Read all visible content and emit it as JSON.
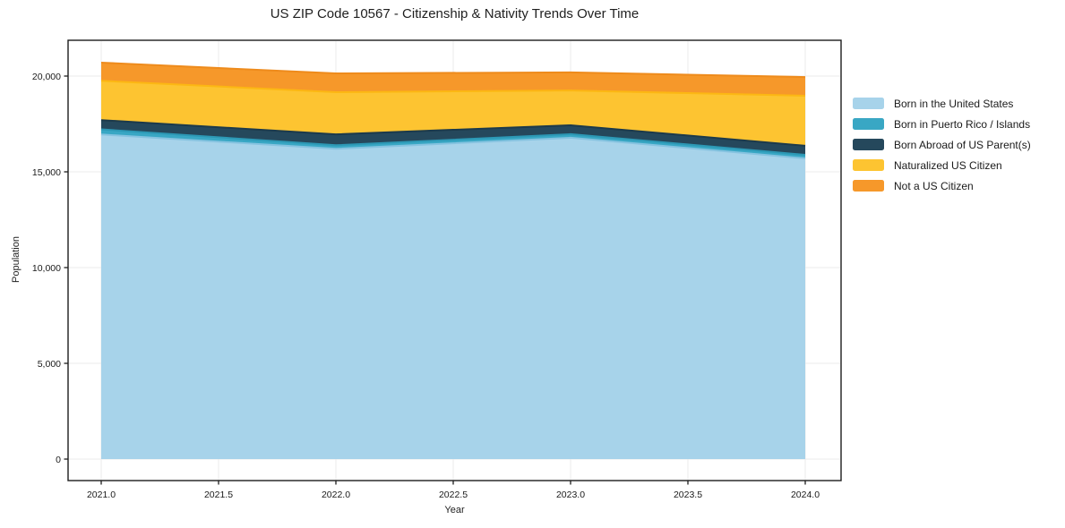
{
  "title": "US ZIP Code 10567 - Citizenship & Nativity Trends Over Time",
  "chart_data": {
    "type": "area",
    "stacked": true,
    "title": "US ZIP Code 10567 - Citizenship & Nativity Trends Over Time",
    "xlabel": "Year",
    "ylabel": "Population",
    "x": [
      2021,
      2022,
      2023,
      2024
    ],
    "series": [
      {
        "name": "Born in the United States",
        "color": "#a7d3ea",
        "edge": "#86c3e0",
        "values": [
          16950,
          16200,
          16780,
          15700
        ]
      },
      {
        "name": "Born in Puerto Rico / Islands",
        "color": "#39a7c4",
        "edge": "#2c98b5",
        "values": [
          270,
          190,
          185,
          190
        ]
      },
      {
        "name": "Born Abroad of US Parent(s)",
        "color": "#25485c",
        "edge": "#1c3a4b",
        "values": [
          480,
          570,
          465,
          470
        ]
      },
      {
        "name": "Naturalized US Citizen",
        "color": "#fdc431",
        "edge": "#fcb713",
        "values": [
          2050,
          2200,
          1820,
          2610
        ]
      },
      {
        "name": "Not a US Citizen",
        "color": "#f6982a",
        "edge": "#ee8b1c",
        "values": [
          950,
          980,
          940,
          980
        ]
      }
    ],
    "totals": [
      20700,
      20140,
      20190,
      19950
    ],
    "x_ticks": [
      2021.0,
      2021.5,
      2022.0,
      2022.5,
      2023.0,
      2023.5,
      2024.0
    ],
    "x_tick_labels": [
      "2021.0",
      "2021.5",
      "2022.0",
      "2022.5",
      "2023.0",
      "2023.5",
      "2024.0"
    ],
    "y_ticks": [
      0,
      5000,
      10000,
      15000,
      20000
    ],
    "y_tick_labels": [
      "0",
      "5,000",
      "10,000",
      "15,000",
      "20,000"
    ],
    "xlim": [
      2020.86,
      2024.15
    ],
    "ylim": [
      0,
      21870
    ],
    "grid": true,
    "legend_position": "right",
    "grid_color": "#ebebeb",
    "spine_color": "#1c1c1c",
    "background_color": "#ffffff"
  }
}
